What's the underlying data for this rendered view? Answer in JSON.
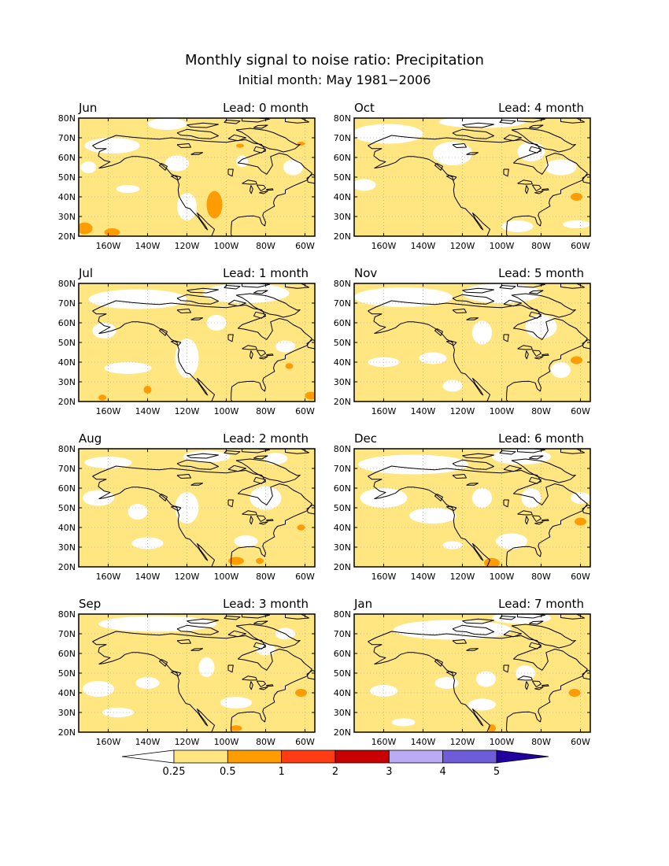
{
  "title": "Monthly signal to noise ratio: Precipitation",
  "subtitle": "Initial month: May 1981−2006",
  "lead_prefix": "Lead:",
  "lead_suffix": "month",
  "lat_labels": [
    "20N",
    "30N",
    "40N",
    "50N",
    "60N",
    "70N",
    "80N"
  ],
  "lon_labels": [
    "160W",
    "140W",
    "120W",
    "100W",
    "80W",
    "60W"
  ],
  "panels": [
    {
      "month": "Jun",
      "lead": "0"
    },
    {
      "month": "Oct",
      "lead": "4"
    },
    {
      "month": "Jul",
      "lead": "1"
    },
    {
      "month": "Nov",
      "lead": "5"
    },
    {
      "month": "Aug",
      "lead": "2"
    },
    {
      "month": "Dec",
      "lead": "6"
    },
    {
      "month": "Sep",
      "lead": "3"
    },
    {
      "month": "Jan",
      "lead": "7"
    }
  ],
  "colorbar": {
    "labels": [
      "0.25",
      "0.5",
      "1",
      "2",
      "3",
      "4",
      "5"
    ],
    "colors": [
      "#ffffff",
      "#ffe680",
      "#ff9d00",
      "#ff3c14",
      "#c80000",
      "#bbaaf5",
      "#6f5cd9",
      "#22009e"
    ]
  },
  "shading_colors": {
    "base": "#ffe680",
    "low": "#ffffff",
    "mid": "#ff9d00"
  }
}
